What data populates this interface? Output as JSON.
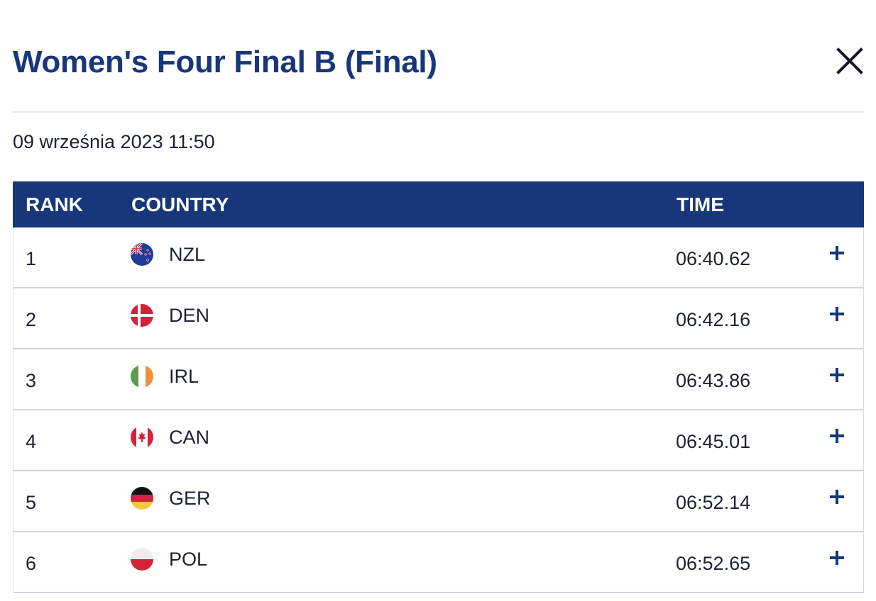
{
  "modal": {
    "title": "Women's Four Final B (Final)",
    "close_icon": "close-icon"
  },
  "event": {
    "datetime": "09 września 2023 11:50"
  },
  "table": {
    "headers": {
      "rank": "RANK",
      "country": "COUNTRY",
      "time": "TIME"
    },
    "rows": [
      {
        "rank": "1",
        "country": "NZL",
        "time": "06:40.62",
        "flag_icon": "flag-nzl-icon"
      },
      {
        "rank": "2",
        "country": "DEN",
        "time": "06:42.16",
        "flag_icon": "flag-den-icon"
      },
      {
        "rank": "3",
        "country": "IRL",
        "time": "06:43.86",
        "flag_icon": "flag-irl-icon"
      },
      {
        "rank": "4",
        "country": "CAN",
        "time": "06:45.01",
        "flag_icon": "flag-can-icon"
      },
      {
        "rank": "5",
        "country": "GER",
        "time": "06:52.14",
        "flag_icon": "flag-ger-icon"
      },
      {
        "rank": "6",
        "country": "POL",
        "time": "06:52.65",
        "flag_icon": "flag-pol-icon"
      }
    ],
    "expand_icon": "plus-icon"
  },
  "colors": {
    "brand_navy": "#17377a",
    "text": "#1d2233",
    "divider": "#e6e8ee",
    "row_border": "#cfd5df"
  }
}
